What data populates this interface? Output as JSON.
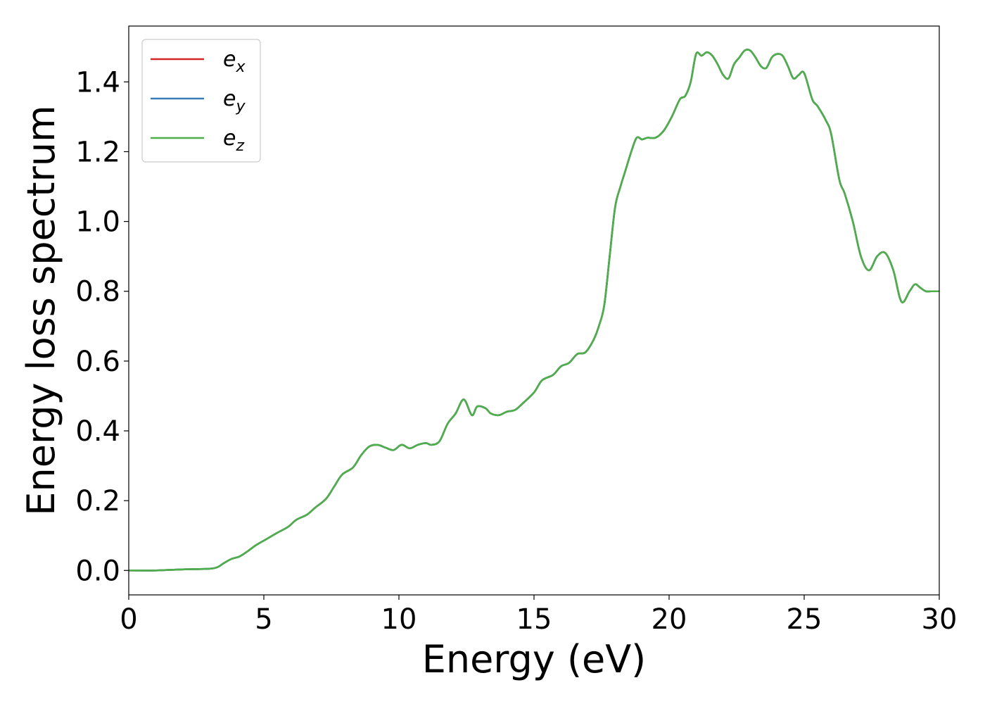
{
  "chart_data": {
    "type": "line",
    "title": "",
    "xlabel": "Energy (eV)",
    "ylabel": "Energy loss spectrum",
    "xlim": [
      0,
      30
    ],
    "ylim": [
      -0.07,
      1.56
    ],
    "xticks": [
      {
        "value": 0,
        "label": "0"
      },
      {
        "value": 5,
        "label": "5"
      },
      {
        "value": 10,
        "label": "10"
      },
      {
        "value": 15,
        "label": "15"
      },
      {
        "value": 20,
        "label": "20"
      },
      {
        "value": 25,
        "label": "25"
      },
      {
        "value": 30,
        "label": "30"
      }
    ],
    "yticks": [
      {
        "value": 0.0,
        "label": "0.0"
      },
      {
        "value": 0.2,
        "label": "0.2"
      },
      {
        "value": 0.4,
        "label": "0.4"
      },
      {
        "value": 0.6,
        "label": "0.6"
      },
      {
        "value": 0.8,
        "label": "0.8"
      },
      {
        "value": 1.0,
        "label": "1.0"
      },
      {
        "value": 1.2,
        "label": "1.2"
      },
      {
        "value": 1.4,
        "label": "1.4"
      }
    ],
    "grid": false,
    "legend_position": "top-left",
    "x": [
      0,
      1,
      2,
      3,
      3.3,
      3.5,
      3.8,
      4.1,
      4.4,
      4.7,
      5.1,
      5.5,
      5.9,
      6.2,
      6.6,
      6.9,
      7.3,
      7.6,
      7.9,
      8.3,
      8.6,
      8.9,
      9.2,
      9.5,
      9.8,
      10.1,
      10.4,
      10.7,
      11.0,
      11.2,
      11.5,
      11.8,
      12.1,
      12.4,
      12.7,
      12.9,
      13.2,
      13.4,
      13.7,
      14.0,
      14.3,
      14.6,
      15.0,
      15.3,
      15.7,
      16.0,
      16.3,
      16.6,
      16.9,
      17.2,
      17.4,
      17.6,
      17.8,
      18.0,
      18.2,
      18.4,
      18.6,
      18.8,
      19.0,
      19.2,
      19.5,
      19.8,
      20.1,
      20.4,
      20.6,
      20.8,
      21.0,
      21.2,
      21.4,
      21.6,
      21.8,
      22.0,
      22.2,
      22.4,
      22.6,
      22.8,
      23.0,
      23.2,
      23.4,
      23.6,
      23.8,
      24.0,
      24.2,
      24.4,
      24.6,
      24.8,
      25.0,
      25.3,
      25.5,
      25.8,
      26.0,
      26.3,
      26.5,
      26.8,
      27.1,
      27.4,
      27.7,
      28.0,
      28.3,
      28.6,
      28.9,
      29.1,
      29.3,
      29.5,
      29.7,
      30.0
    ],
    "series": [
      {
        "name": "e_x",
        "name_base": "e",
        "name_sub": "x",
        "color": "#d62728",
        "values": [
          0.0,
          0.0,
          0.003,
          0.005,
          0.01,
          0.02,
          0.033,
          0.04,
          0.055,
          0.072,
          0.09,
          0.108,
          0.125,
          0.145,
          0.16,
          0.18,
          0.205,
          0.24,
          0.275,
          0.295,
          0.33,
          0.355,
          0.36,
          0.352,
          0.345,
          0.36,
          0.35,
          0.36,
          0.365,
          0.36,
          0.37,
          0.42,
          0.45,
          0.49,
          0.445,
          0.47,
          0.465,
          0.45,
          0.445,
          0.455,
          0.46,
          0.48,
          0.51,
          0.545,
          0.56,
          0.585,
          0.595,
          0.62,
          0.625,
          0.66,
          0.7,
          0.76,
          0.9,
          1.04,
          1.1,
          1.15,
          1.2,
          1.24,
          1.235,
          1.24,
          1.24,
          1.26,
          1.3,
          1.35,
          1.36,
          1.4,
          1.48,
          1.475,
          1.485,
          1.475,
          1.45,
          1.42,
          1.41,
          1.45,
          1.47,
          1.49,
          1.49,
          1.47,
          1.445,
          1.44,
          1.47,
          1.48,
          1.475,
          1.445,
          1.41,
          1.42,
          1.425,
          1.35,
          1.33,
          1.29,
          1.25,
          1.12,
          1.08,
          1.0,
          0.9,
          0.86,
          0.9,
          0.91,
          0.86,
          0.77,
          0.8,
          0.82,
          0.81,
          0.8,
          0.8,
          0.8
        ]
      },
      {
        "name": "e_y",
        "name_base": "e",
        "name_sub": "y",
        "color": "#377eb8",
        "values": [
          0.0,
          0.0,
          0.003,
          0.005,
          0.01,
          0.02,
          0.033,
          0.04,
          0.055,
          0.072,
          0.09,
          0.108,
          0.125,
          0.145,
          0.16,
          0.18,
          0.205,
          0.24,
          0.275,
          0.295,
          0.33,
          0.355,
          0.36,
          0.352,
          0.345,
          0.36,
          0.35,
          0.36,
          0.365,
          0.36,
          0.37,
          0.42,
          0.45,
          0.49,
          0.445,
          0.47,
          0.465,
          0.45,
          0.445,
          0.455,
          0.46,
          0.48,
          0.51,
          0.545,
          0.56,
          0.585,
          0.595,
          0.62,
          0.625,
          0.66,
          0.7,
          0.76,
          0.9,
          1.04,
          1.1,
          1.15,
          1.2,
          1.24,
          1.235,
          1.24,
          1.24,
          1.26,
          1.3,
          1.35,
          1.36,
          1.4,
          1.48,
          1.475,
          1.485,
          1.475,
          1.45,
          1.42,
          1.41,
          1.45,
          1.47,
          1.49,
          1.49,
          1.47,
          1.445,
          1.44,
          1.47,
          1.48,
          1.475,
          1.445,
          1.41,
          1.42,
          1.425,
          1.35,
          1.33,
          1.29,
          1.25,
          1.12,
          1.08,
          1.0,
          0.9,
          0.86,
          0.9,
          0.91,
          0.86,
          0.77,
          0.8,
          0.82,
          0.81,
          0.8,
          0.8,
          0.8
        ]
      },
      {
        "name": "e_z",
        "name_base": "e",
        "name_sub": "z",
        "color": "#4daf4a",
        "values": [
          0.0,
          0.0,
          0.003,
          0.005,
          0.01,
          0.02,
          0.033,
          0.04,
          0.055,
          0.072,
          0.09,
          0.108,
          0.125,
          0.145,
          0.16,
          0.18,
          0.205,
          0.24,
          0.275,
          0.295,
          0.33,
          0.355,
          0.36,
          0.352,
          0.345,
          0.36,
          0.35,
          0.36,
          0.365,
          0.36,
          0.37,
          0.42,
          0.45,
          0.49,
          0.445,
          0.47,
          0.465,
          0.45,
          0.445,
          0.455,
          0.46,
          0.48,
          0.51,
          0.545,
          0.56,
          0.585,
          0.595,
          0.62,
          0.625,
          0.66,
          0.7,
          0.76,
          0.9,
          1.04,
          1.1,
          1.15,
          1.2,
          1.24,
          1.235,
          1.24,
          1.24,
          1.26,
          1.3,
          1.35,
          1.36,
          1.4,
          1.48,
          1.475,
          1.485,
          1.475,
          1.45,
          1.42,
          1.41,
          1.45,
          1.47,
          1.49,
          1.49,
          1.47,
          1.445,
          1.44,
          1.47,
          1.48,
          1.475,
          1.445,
          1.41,
          1.42,
          1.425,
          1.35,
          1.33,
          1.29,
          1.25,
          1.12,
          1.08,
          1.0,
          0.9,
          0.86,
          0.9,
          0.91,
          0.86,
          0.77,
          0.8,
          0.82,
          0.81,
          0.8,
          0.8,
          0.8
        ]
      }
    ]
  }
}
